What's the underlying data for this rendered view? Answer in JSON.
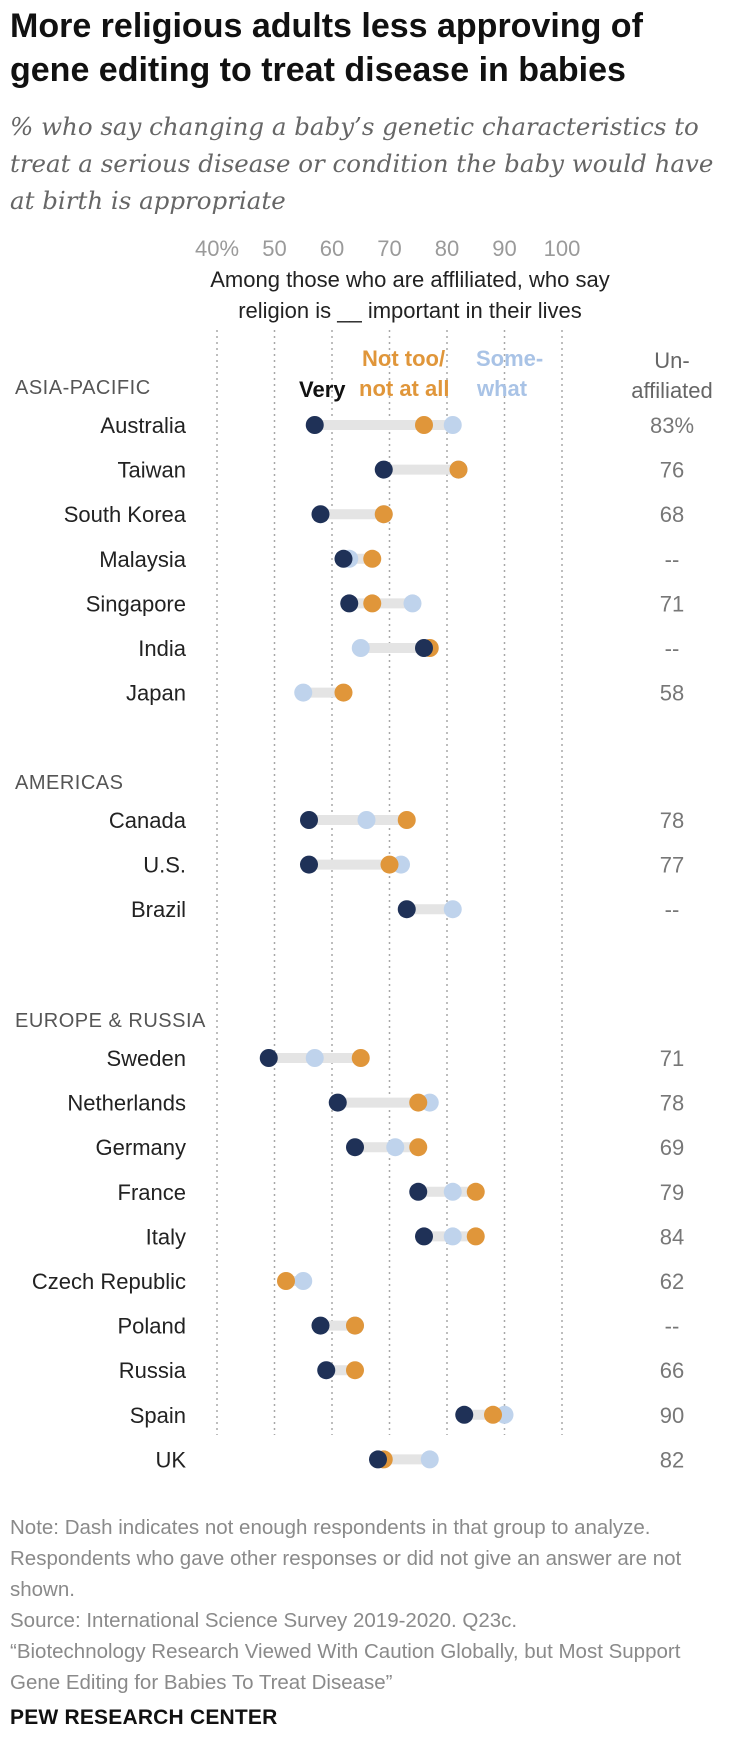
{
  "header": {
    "title": "More religious adults less approving of gene editing to treat disease in babies",
    "subtitle": "% who say changing a baby’s genetic characteristics to treat a serious disease or condition the baby would have at birth is appropriate"
  },
  "chart_data": {
    "type": "scatter",
    "subtype": "dot-plot",
    "x_tick_labels": [
      "40%",
      "50",
      "60",
      "70",
      "80",
      "90",
      "100"
    ],
    "x_ticks": [
      40,
      50,
      60,
      70,
      80,
      90,
      100
    ],
    "xlim": [
      40,
      100
    ],
    "grid": "vertical dotted",
    "head_note_lines": [
      "Among those who are affliliated, who say",
      "religion is __ important in their lives"
    ],
    "legend": {
      "very": "Very",
      "not_too_line1": "Not too/",
      "not_too_line2": "not at all",
      "somewhat_line1": "Some-",
      "somewhat_line2": "what"
    },
    "unaffiliated_header": [
      "Un-",
      "affiliated"
    ],
    "colors": {
      "very": "#1f3157",
      "somewhat": "#bfd3ec",
      "not_too": "#e0963a",
      "connector": "#e4e4e4",
      "grid": "#a8a8a8"
    },
    "groups": [
      {
        "region": "ASIA-PACIFIC",
        "rows": [
          {
            "country": "Australia",
            "very": 57,
            "somewhat": 81,
            "not_too": 76,
            "unaffiliated": "83%"
          },
          {
            "country": "Taiwan",
            "very": 69,
            "somewhat": 82,
            "not_too": 82,
            "unaffiliated": "76"
          },
          {
            "country": "South Korea",
            "very": 58,
            "somewhat": 69,
            "not_too": 69,
            "unaffiliated": "68"
          },
          {
            "country": "Malaysia",
            "very": 62,
            "somewhat": 63,
            "not_too": 67,
            "unaffiliated": "--"
          },
          {
            "country": "Singapore",
            "very": 63,
            "somewhat": 74,
            "not_too": 67,
            "unaffiliated": "71"
          },
          {
            "country": "India",
            "very": 76,
            "somewhat": 65,
            "not_too": 77,
            "unaffiliated": "--"
          },
          {
            "country": "Japan",
            "very": null,
            "somewhat": 55,
            "not_too": 62,
            "unaffiliated": "58"
          }
        ]
      },
      {
        "region": "AMERICAS",
        "rows": [
          {
            "country": "Canada",
            "very": 56,
            "somewhat": 66,
            "not_too": 73,
            "unaffiliated": "78"
          },
          {
            "country": "U.S.",
            "very": 56,
            "somewhat": 72,
            "not_too": 70,
            "unaffiliated": "77"
          },
          {
            "country": "Brazil",
            "very": 73,
            "somewhat": 81,
            "not_too": null,
            "unaffiliated": "--"
          }
        ]
      },
      {
        "region": "EUROPE & RUSSIA",
        "rows": [
          {
            "country": "Sweden",
            "very": 49,
            "somewhat": 57,
            "not_too": 65,
            "unaffiliated": "71"
          },
          {
            "country": "Netherlands",
            "very": 61,
            "somewhat": 77,
            "not_too": 75,
            "unaffiliated": "78"
          },
          {
            "country": "Germany",
            "very": 64,
            "somewhat": 71,
            "not_too": 75,
            "unaffiliated": "69"
          },
          {
            "country": "France",
            "very": 75,
            "somewhat": 81,
            "not_too": 85,
            "unaffiliated": "79"
          },
          {
            "country": "Italy",
            "very": 76,
            "somewhat": 81,
            "not_too": 85,
            "unaffiliated": "84"
          },
          {
            "country": "Czech Republic",
            "very": null,
            "somewhat": 55,
            "not_too": 52,
            "unaffiliated": "62"
          },
          {
            "country": "Poland",
            "very": 58,
            "somewhat": 64,
            "not_too": 64,
            "unaffiliated": "--"
          },
          {
            "country": "Russia",
            "very": 59,
            "somewhat": 59,
            "not_too": 64,
            "unaffiliated": "66"
          },
          {
            "country": "Spain",
            "very": 83,
            "somewhat": 90,
            "not_too": 88,
            "unaffiliated": "90"
          },
          {
            "country": "UK",
            "very": 68,
            "somewhat": 77,
            "not_too": 69,
            "unaffiliated": "82"
          }
        ]
      }
    ]
  },
  "notes": {
    "note": "Note: Dash indicates not enough respondents in that group to analyze. Respondents who gave other responses or did not give an answer are not shown.",
    "source": "Source: International Science Survey 2019-2020. Q23c.",
    "report": "“Biotechnology Research Viewed With Caution Globally, but Most Support Gene Editing for Babies To Treat Disease”"
  },
  "footer": {
    "brand": "PEW RESEARCH CENTER"
  }
}
